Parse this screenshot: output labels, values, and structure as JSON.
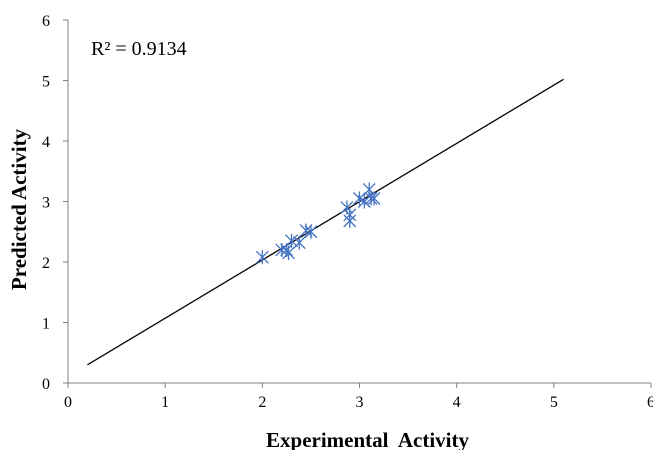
{
  "chart_data": {
    "type": "scatter",
    "xlabel": "Experimental  Activity",
    "ylabel": "Predicted Activity",
    "xlim": [
      0,
      6
    ],
    "ylim": [
      0,
      6
    ],
    "x_ticks": [
      "0",
      "1",
      "2",
      "3",
      "4",
      "5",
      "6"
    ],
    "y_ticks": [
      "0",
      "1",
      "2",
      "3",
      "4",
      "5",
      "6"
    ],
    "grid": false,
    "legend": "none",
    "annotation": "R² = 0.9134",
    "marker": "asterisk",
    "marker_color": "#4472C4",
    "line_color": "#000000",
    "series": [
      {
        "values": [
          {
            "x": 2.0,
            "y": 2.08
          },
          {
            "x": 2.2,
            "y": 2.2
          },
          {
            "x": 2.25,
            "y": 2.2
          },
          {
            "x": 2.27,
            "y": 2.15
          },
          {
            "x": 2.3,
            "y": 2.35
          },
          {
            "x": 2.38,
            "y": 2.32
          },
          {
            "x": 2.45,
            "y": 2.52
          },
          {
            "x": 2.5,
            "y": 2.5
          },
          {
            "x": 2.87,
            "y": 2.9
          },
          {
            "x": 2.9,
            "y": 2.78
          },
          {
            "x": 2.9,
            "y": 2.68
          },
          {
            "x": 3.0,
            "y": 3.05
          },
          {
            "x": 3.05,
            "y": 3.0
          },
          {
            "x": 3.1,
            "y": 3.2
          },
          {
            "x": 3.12,
            "y": 3.05
          },
          {
            "x": 3.15,
            "y": 3.05
          }
        ]
      }
    ],
    "trendline": {
      "start": {
        "x": 0.2,
        "y": 0.3
      },
      "end": {
        "x": 5.1,
        "y": 5.02
      }
    }
  }
}
